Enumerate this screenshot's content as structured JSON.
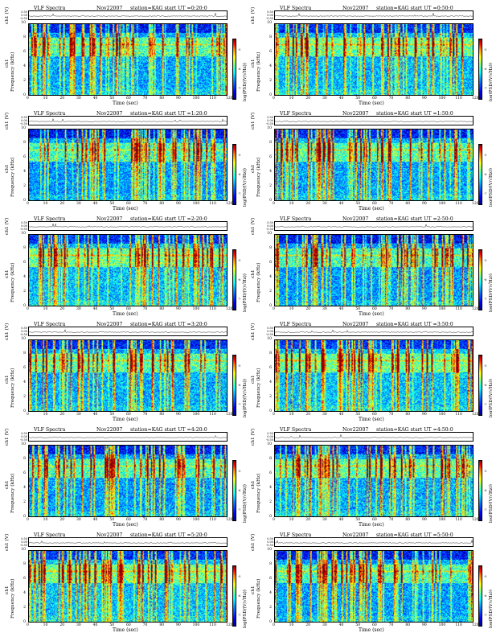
{
  "chart_data": {
    "type": "heatmap",
    "common": {
      "title_left": "VLF Spectra",
      "date": "Nov22007",
      "station": "station=KAG",
      "start_prefix": "start UT =",
      "xlabel": "Time (sec)",
      "ylabel": "Frequency (kHz)",
      "ch_label": "ch1 (V)",
      "spec_ch_label": "ch1",
      "colorbar_label": "log(PSD/(V/√Hz))",
      "xlim": [
        0,
        120
      ],
      "ylim_khz": [
        0,
        10
      ],
      "x_ticks": [
        "0",
        "10",
        "20",
        "30",
        "40",
        "50",
        "60",
        "70",
        "80",
        "90",
        "100",
        "110",
        "120"
      ],
      "y_ticks": [
        "0",
        "2",
        "4",
        "6",
        "8",
        "10"
      ],
      "ch_ticks": [
        "0.50",
        "0.00",
        "-0.50"
      ],
      "colorbar_ticks": [
        "-5",
        "-6",
        "-7"
      ],
      "colormap": [
        "#00008f",
        "#0000ff",
        "#0080ff",
        "#00ffff",
        "#80ff80",
        "#ffff00",
        "#ff8000",
        "#ff0000",
        "#8f0000"
      ]
    },
    "panels": [
      {
        "start_ut": "0:20:0"
      },
      {
        "start_ut": "0:50:0"
      },
      {
        "start_ut": "1:20:0"
      },
      {
        "start_ut": "1:50:0"
      },
      {
        "start_ut": "2:20:0"
      },
      {
        "start_ut": "2:50:0"
      },
      {
        "start_ut": "3:20:0"
      },
      {
        "start_ut": "3:50:0"
      },
      {
        "start_ut": "4:20:0"
      },
      {
        "start_ut": "4:50:0"
      },
      {
        "start_ut": "5:20:0"
      },
      {
        "start_ut": "5:50:0"
      }
    ]
  }
}
